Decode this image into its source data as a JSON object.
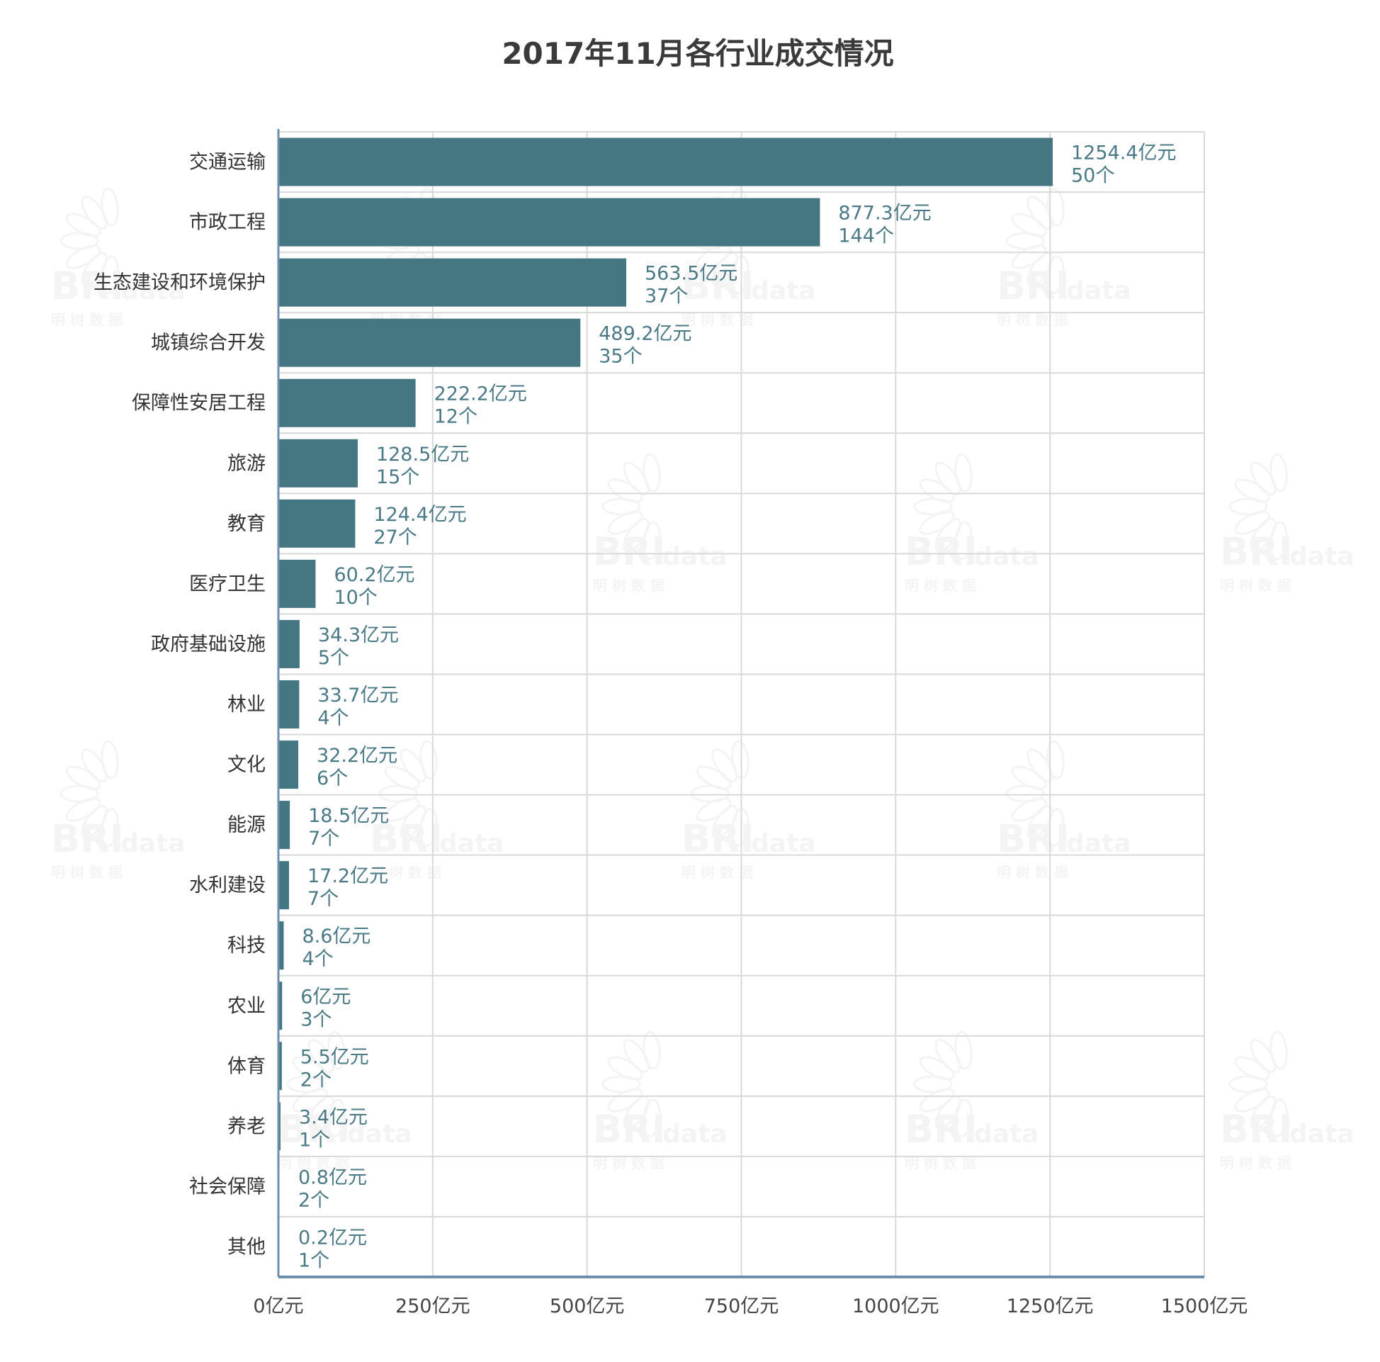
{
  "chart_data": {
    "type": "bar",
    "orientation": "horizontal",
    "title": "2017年11月各行业成交情况",
    "xlabel": "",
    "ylabel": "",
    "xlim": [
      0,
      1500
    ],
    "x_ticks": [
      0,
      250,
      500,
      750,
      1000,
      1250,
      1500
    ],
    "x_tick_labels": [
      "0亿元",
      "250亿元",
      "500亿元",
      "750亿元",
      "1000亿元",
      "1250亿元",
      "1500亿元"
    ],
    "grid": true,
    "legend": "none",
    "categories": [
      "交通运输",
      "市政工程",
      "生态建设和环境保护",
      "城镇综合开发",
      "保障性安居工程",
      "旅游",
      "教育",
      "医疗卫生",
      "政府基础设施",
      "林业",
      "文化",
      "能源",
      "水利建设",
      "科技",
      "农业",
      "体育",
      "养老",
      "社会保障",
      "其他"
    ],
    "series": [
      {
        "values": [
          1254.4,
          877.3,
          563.5,
          489.2,
          222.2,
          128.5,
          124.4,
          60.2,
          34.3,
          33.7,
          32.2,
          18.5,
          17.2,
          8.6,
          6,
          5.5,
          3.4,
          0.8,
          0.2
        ]
      }
    ],
    "value_labels": [
      "1254.4亿元",
      "877.3亿元",
      "563.5亿元",
      "489.2亿元",
      "222.2亿元",
      "128.5亿元",
      "124.4亿元",
      "60.2亿元",
      "34.3亿元",
      "33.7亿元",
      "32.2亿元",
      "18.5亿元",
      "17.2亿元",
      "8.6亿元",
      "6亿元",
      "5.5亿元",
      "3.4亿元",
      "0.8亿元",
      "0.2亿元"
    ],
    "count_labels": [
      "50个",
      "144个",
      "37个",
      "35个",
      "12个",
      "15个",
      "27个",
      "10个",
      "5个",
      "4个",
      "6个",
      "7个",
      "7个",
      "4个",
      "3个",
      "2个",
      "1个",
      "2个",
      "1个"
    ]
  },
  "watermark": {
    "brand": "BRI",
    "suffix": "data",
    "subtitle": "明  树  数  据"
  },
  "colors": {
    "bar": "#457783",
    "label": "#4a7a86",
    "axis": "#6d8fb2",
    "grid": "#d9d9d9",
    "title": "#3a3a3a",
    "watermark": "#f3f3f3"
  },
  "icons": {
    "watermark_logo": "leaf-ornament-icon"
  }
}
